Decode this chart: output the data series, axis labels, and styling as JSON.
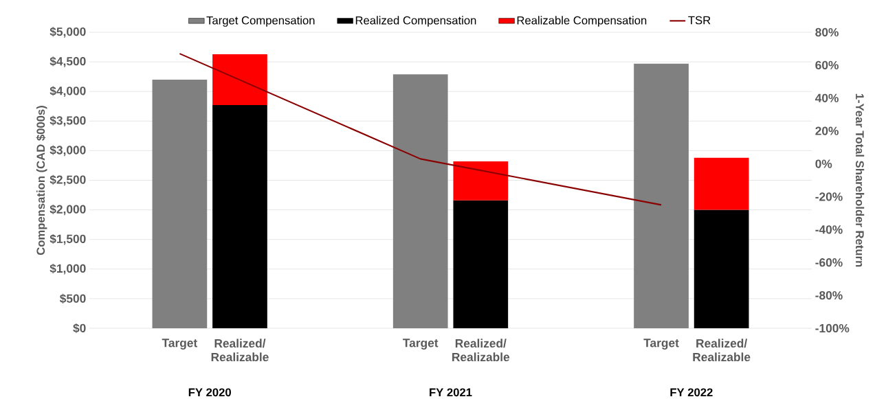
{
  "chart_data": {
    "type": "bar",
    "stacked": true,
    "categories": [
      "Target",
      "Realized/ Realizable",
      null,
      null,
      "Target",
      "Realized/ Realizable",
      null,
      null,
      "Target",
      "Realized/ Realizable"
    ],
    "series": [
      {
        "name": "Target Compensation",
        "color": "#808080",
        "values": [
          4200,
          null,
          null,
          null,
          4290,
          null,
          null,
          null,
          4470,
          null
        ]
      },
      {
        "name": "Realized Compensation",
        "color": "#000000",
        "values": [
          null,
          3770,
          null,
          null,
          null,
          2160,
          null,
          null,
          null,
          2000
        ]
      },
      {
        "name": "Realizable Compensation",
        "color": "#ff0000",
        "values": [
          null,
          860,
          null,
          null,
          null,
          660,
          null,
          null,
          null,
          880
        ]
      },
      {
        "name": "TSR",
        "type": "line",
        "axis": "y2",
        "color": "#8b0000",
        "values": [
          67,
          null,
          null,
          null,
          3,
          null,
          null,
          null,
          -25,
          null
        ]
      }
    ],
    "ylabel": "Compensation (CAD $000s)",
    "y2label": "1-Year Total Shareholder Return",
    "ylim": [
      0,
      5000
    ],
    "yticks": [
      {
        "value": 0,
        "label": "$0"
      },
      {
        "value": 500,
        "label": "$500"
      },
      {
        "value": 1000,
        "label": "$1,000"
      },
      {
        "value": 1500,
        "label": "$1,500"
      },
      {
        "value": 2000,
        "label": "$2,000"
      },
      {
        "value": 2500,
        "label": "$2,500"
      },
      {
        "value": 3000,
        "label": "$3,000"
      },
      {
        "value": 3500,
        "label": "$3,500"
      },
      {
        "value": 4000,
        "label": "$4,000"
      },
      {
        "value": 4500,
        "label": "$4,500"
      },
      {
        "value": 5000,
        "label": "$5,000"
      }
    ],
    "y2lim": [
      -100,
      80
    ],
    "y2ticks": [
      {
        "value": -100,
        "label": "-100%"
      },
      {
        "value": -80,
        "label": "-80%"
      },
      {
        "value": -60,
        "label": "-60%"
      },
      {
        "value": -40,
        "label": "-40%"
      },
      {
        "value": -20,
        "label": "-20%"
      },
      {
        "value": 0,
        "label": "0%"
      },
      {
        "value": 20,
        "label": "20%"
      },
      {
        "value": 40,
        "label": "40%"
      },
      {
        "value": 60,
        "label": "60%"
      },
      {
        "value": 80,
        "label": "80%"
      }
    ],
    "annotations": [
      "FY 2020",
      "FY 2021",
      "FY 2022"
    ],
    "grid": "y",
    "legend": "top"
  }
}
